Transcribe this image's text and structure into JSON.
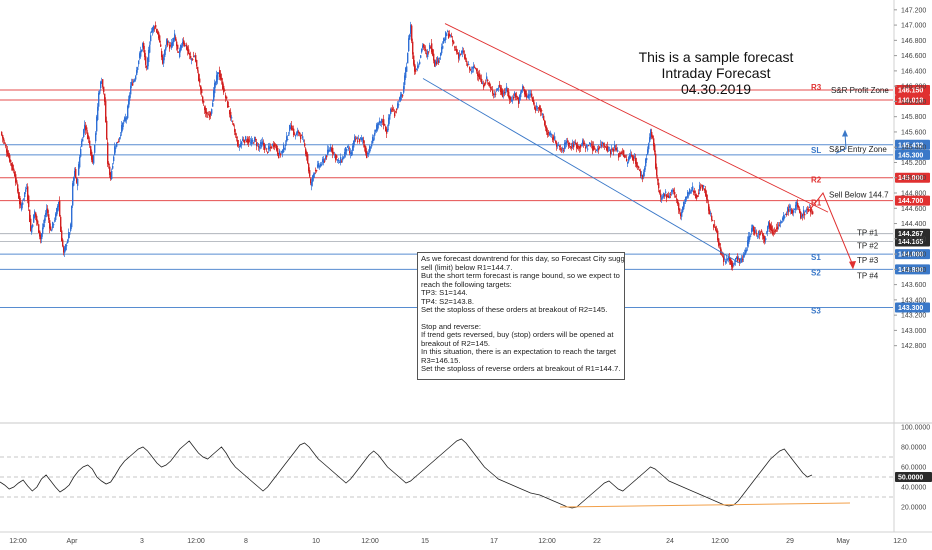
{
  "title": {
    "line1": "This is a sample forecast",
    "line2": "Intraday Forecast",
    "line3": "04.30.2019"
  },
  "colors": {
    "bull": "#2f6fd6",
    "bear": "#d21f1f",
    "resistance": "#e03030",
    "support": "#3a78c8",
    "osc": "#222222",
    "osc_trend": "#f2a04a",
    "tp": "#9aa0a8"
  },
  "chart_data": [
    {
      "type": "candlestick",
      "price_scale": {
        "min": 141.8,
        "max": 147.25
      },
      "price_ticks": [
        "147.200",
        "147.000",
        "146.800",
        "146.600",
        "146.400",
        "146.200",
        "146.000",
        "145.800",
        "145.600",
        "145.400",
        "145.200",
        "145.000",
        "144.800",
        "144.600",
        "144.400",
        "144.200",
        "144.000",
        "143.800",
        "143.600",
        "143.400",
        "143.200",
        "143.000",
        "142.800"
      ],
      "x_ticks": [
        "12:00",
        "Apr",
        "3",
        "12:00",
        "8",
        "10",
        "12:00",
        "15",
        "17",
        "12:00",
        "22",
        "24",
        "12:00",
        "29",
        "May",
        "12:0"
      ],
      "anchors": [
        [
          0,
          145.6
        ],
        [
          5,
          145.4
        ],
        [
          10,
          145.2
        ],
        [
          14,
          145.05
        ],
        [
          20,
          144.6
        ],
        [
          26,
          144.9
        ],
        [
          30,
          144.3
        ],
        [
          34,
          144.55
        ],
        [
          40,
          144.2
        ],
        [
          46,
          144.6
        ],
        [
          50,
          144.3
        ],
        [
          55,
          144.5
        ],
        [
          58,
          144.7
        ],
        [
          60,
          144.3
        ],
        [
          63,
          144.0
        ],
        [
          66,
          144.15
        ],
        [
          70,
          144.35
        ],
        [
          72,
          144.9
        ],
        [
          74,
          145.1
        ],
        [
          76,
          144.9
        ],
        [
          80,
          145.4
        ],
        [
          84,
          145.7
        ],
        [
          88,
          145.5
        ],
        [
          92,
          145.2
        ],
        [
          95,
          145.6
        ],
        [
          98,
          146.1
        ],
        [
          101,
          146.3
        ],
        [
          104,
          146.0
        ],
        [
          107,
          145.2
        ],
        [
          110,
          145.0
        ],
        [
          114,
          145.4
        ],
        [
          118,
          145.5
        ],
        [
          122,
          145.7
        ],
        [
          126,
          145.8
        ],
        [
          130,
          146.2
        ],
        [
          134,
          146.3
        ],
        [
          138,
          146.55
        ],
        [
          142,
          146.75
        ],
        [
          146,
          146.4
        ],
        [
          150,
          146.9
        ],
        [
          154,
          147.0
        ],
        [
          158,
          146.85
        ],
        [
          162,
          146.5
        ],
        [
          166,
          146.8
        ],
        [
          170,
          146.7
        ],
        [
          174,
          146.85
        ],
        [
          178,
          146.6
        ],
        [
          182,
          146.8
        ],
        [
          186,
          146.7
        ],
        [
          190,
          146.55
        ],
        [
          194,
          146.6
        ],
        [
          198,
          146.3
        ],
        [
          202,
          146.0
        ],
        [
          206,
          145.8
        ],
        [
          210,
          145.85
        ],
        [
          214,
          146.2
        ],
        [
          218,
          146.4
        ],
        [
          222,
          146.2
        ],
        [
          226,
          146.0
        ],
        [
          230,
          145.8
        ],
        [
          234,
          145.6
        ],
        [
          238,
          145.4
        ],
        [
          242,
          145.5
        ],
        [
          246,
          145.5
        ],
        [
          250,
          145.45
        ],
        [
          254,
          145.5
        ],
        [
          258,
          145.4
        ],
        [
          262,
          145.45
        ],
        [
          266,
          145.35
        ],
        [
          270,
          145.4
        ],
        [
          274,
          145.45
        ],
        [
          278,
          145.3
        ],
        [
          282,
          145.35
        ],
        [
          286,
          145.5
        ],
        [
          290,
          145.7
        ],
        [
          294,
          145.55
        ],
        [
          298,
          145.6
        ],
        [
          302,
          145.5
        ],
        [
          306,
          145.3
        ],
        [
          310,
          144.9
        ],
        [
          314,
          145.1
        ],
        [
          318,
          145.15
        ],
        [
          322,
          145.2
        ],
        [
          326,
          145.3
        ],
        [
          330,
          145.4
        ],
        [
          334,
          145.3
        ],
        [
          338,
          145.2
        ],
        [
          342,
          145.25
        ],
        [
          346,
          145.4
        ],
        [
          350,
          145.3
        ],
        [
          354,
          145.5
        ],
        [
          358,
          145.5
        ],
        [
          362,
          145.5
        ],
        [
          366,
          145.3
        ],
        [
          370,
          145.4
        ],
        [
          374,
          145.6
        ],
        [
          378,
          145.7
        ],
        [
          382,
          145.75
        ],
        [
          386,
          145.6
        ],
        [
          390,
          145.9
        ],
        [
          394,
          145.85
        ],
        [
          398,
          146.0
        ],
        [
          402,
          146.1
        ],
        [
          406,
          146.5
        ],
        [
          408,
          146.8
        ],
        [
          410,
          147.0
        ],
        [
          412,
          146.6
        ],
        [
          414,
          146.4
        ],
        [
          418,
          146.5
        ],
        [
          422,
          146.75
        ],
        [
          426,
          146.6
        ],
        [
          430,
          146.75
        ],
        [
          434,
          146.5
        ],
        [
          438,
          146.55
        ],
        [
          442,
          146.75
        ],
        [
          446,
          146.9
        ],
        [
          450,
          146.85
        ],
        [
          454,
          146.7
        ],
        [
          458,
          146.6
        ],
        [
          462,
          146.65
        ],
        [
          466,
          146.5
        ],
        [
          470,
          146.4
        ],
        [
          474,
          146.45
        ],
        [
          478,
          146.35
        ],
        [
          482,
          146.2
        ],
        [
          486,
          146.3
        ],
        [
          490,
          146.15
        ],
        [
          494,
          146.1
        ],
        [
          498,
          146.2
        ],
        [
          502,
          146.1
        ],
        [
          506,
          146.15
        ],
        [
          510,
          146.0
        ],
        [
          514,
          146.1
        ],
        [
          518,
          146.0
        ],
        [
          522,
          146.2
        ],
        [
          526,
          146.05
        ],
        [
          530,
          146.1
        ],
        [
          534,
          145.9
        ],
        [
          538,
          145.95
        ],
        [
          542,
          145.8
        ],
        [
          546,
          145.6
        ],
        [
          550,
          145.55
        ],
        [
          554,
          145.5
        ],
        [
          558,
          145.4
        ],
        [
          562,
          145.35
        ],
        [
          566,
          145.5
        ],
        [
          570,
          145.4
        ],
        [
          574,
          145.45
        ],
        [
          578,
          145.4
        ],
        [
          582,
          145.45
        ],
        [
          586,
          145.4
        ],
        [
          590,
          145.45
        ],
        [
          594,
          145.35
        ],
        [
          598,
          145.4
        ],
        [
          602,
          145.45
        ],
        [
          606,
          145.4
        ],
        [
          610,
          145.35
        ],
        [
          614,
          145.4
        ],
        [
          618,
          145.3
        ],
        [
          622,
          145.35
        ],
        [
          626,
          145.2
        ],
        [
          630,
          145.3
        ],
        [
          634,
          145.25
        ],
        [
          638,
          145.1
        ],
        [
          642,
          145.0
        ],
        [
          646,
          145.3
        ],
        [
          650,
          145.6
        ],
        [
          653,
          145.45
        ],
        [
          656,
          145.0
        ],
        [
          660,
          144.7
        ],
        [
          664,
          144.8
        ],
        [
          668,
          144.75
        ],
        [
          672,
          144.85
        ],
        [
          676,
          144.7
        ],
        [
          680,
          144.5
        ],
        [
          684,
          144.7
        ],
        [
          688,
          144.8
        ],
        [
          692,
          144.85
        ],
        [
          696,
          144.75
        ],
        [
          700,
          144.9
        ],
        [
          704,
          144.85
        ],
        [
          708,
          144.6
        ],
        [
          712,
          144.4
        ],
        [
          716,
          144.3
        ],
        [
          720,
          144.0
        ],
        [
          724,
          143.9
        ],
        [
          728,
          143.95
        ],
        [
          732,
          143.85
        ],
        [
          736,
          143.95
        ],
        [
          740,
          143.9
        ],
        [
          744,
          144.0
        ],
        [
          748,
          144.2
        ],
        [
          752,
          144.35
        ],
        [
          756,
          144.25
        ],
        [
          760,
          144.3
        ],
        [
          764,
          144.2
        ],
        [
          768,
          144.4
        ],
        [
          772,
          144.3
        ],
        [
          776,
          144.35
        ],
        [
          780,
          144.4
        ],
        [
          784,
          144.5
        ],
        [
          788,
          144.6
        ],
        [
          792,
          144.55
        ],
        [
          796,
          144.65
        ],
        [
          800,
          144.5
        ],
        [
          804,
          144.55
        ],
        [
          808,
          144.6
        ],
        [
          812,
          144.55
        ]
      ],
      "trendlines": [
        {
          "name": "falling-resistance",
          "from": [
            "15 12:00",
            147.0
          ],
          "to": [
            "May",
            144.3
          ],
          "color": "#e03030"
        },
        {
          "name": "falling-support",
          "from": [
            "15 00:00",
            146.3
          ],
          "to": [
            "29",
            143.9
          ],
          "color": "#3a78c8"
        }
      ],
      "levels": [
        {
          "id": "r3",
          "label": "R3",
          "note": "S&R Profit Zone",
          "price": 146.15,
          "tag": "146.150",
          "kind": "resistance"
        },
        {
          "id": "profit",
          "label": "",
          "note": "",
          "price": 146.018,
          "tag": "146.018",
          "kind": "resistance"
        },
        {
          "id": "sl-top",
          "label": "",
          "note": "",
          "price": 145.432,
          "tag": "145.432",
          "kind": "support"
        },
        {
          "id": "sl",
          "label": "SL",
          "note": "S&R Entry Zone",
          "price": 145.3,
          "tag": "145.300",
          "kind": "support"
        },
        {
          "id": "r2",
          "label": "R2",
          "note": "",
          "price": 145.0,
          "tag": "145.000",
          "kind": "resistance"
        },
        {
          "id": "r1",
          "label": "R1",
          "note": "Sell Below 144.7",
          "price": 144.7,
          "tag": "144.700",
          "kind": "resistance"
        },
        {
          "id": "tp1",
          "label": "",
          "note": "TP #1",
          "price": 144.267,
          "tag": "144.267",
          "kind": "tp"
        },
        {
          "id": "tp2",
          "label": "",
          "note": "TP #2",
          "price": 144.165,
          "tag": "144.165",
          "kind": "tp"
        },
        {
          "id": "s1",
          "label": "S1",
          "note": "TP #3",
          "price": 144.0,
          "tag": "144.000",
          "kind": "support"
        },
        {
          "id": "s2",
          "label": "S2",
          "note": "TP #4",
          "price": 143.8,
          "tag": "143.800",
          "kind": "support"
        },
        {
          "id": "s3",
          "label": "S3",
          "note": "",
          "price": 143.3,
          "tag": "143.300",
          "kind": "support"
        }
      ]
    },
    {
      "type": "line",
      "name": "oscillator",
      "y_scale": {
        "min": 0,
        "max": 100
      },
      "y_ticks": [
        "100.0000",
        "80.0000",
        "60.0000",
        "40.0000",
        "20.0000"
      ],
      "current_tag": "50.0000",
      "dashed_levels": [
        70,
        50,
        30
      ],
      "values": [
        45,
        42,
        38,
        40,
        44,
        47,
        41,
        36,
        40,
        48,
        52,
        46,
        40,
        35,
        38,
        42,
        50,
        56,
        60,
        62,
        58,
        50,
        46,
        43,
        45,
        52,
        60,
        66,
        70,
        74,
        78,
        80,
        76,
        70,
        64,
        60,
        62,
        66,
        72,
        78,
        82,
        86,
        80,
        74,
        70,
        68,
        72,
        76,
        80,
        74,
        66,
        60,
        56,
        52,
        48,
        44,
        40,
        36,
        40,
        46,
        52,
        58,
        64,
        70,
        76,
        82,
        84,
        80,
        74,
        68,
        64,
        60,
        56,
        52,
        48,
        44,
        48,
        54,
        60,
        66,
        72,
        76,
        72,
        66,
        60,
        56,
        52,
        48,
        44,
        46,
        50,
        54,
        58,
        62,
        66,
        70,
        74,
        78,
        82,
        86,
        88,
        84,
        78,
        72,
        66,
        60,
        56,
        52,
        48,
        46,
        44,
        42,
        40,
        38,
        36,
        34,
        33,
        32,
        30,
        28,
        26,
        24,
        22,
        20,
        19,
        20,
        24,
        28,
        32,
        36,
        40,
        44,
        46,
        42,
        38,
        36,
        40,
        44,
        48,
        52,
        56,
        60,
        58,
        54,
        50,
        46,
        44,
        42,
        40,
        38,
        36,
        34,
        32,
        30,
        28,
        26,
        24,
        22,
        21,
        22,
        26,
        32,
        38,
        44,
        50,
        56,
        62,
        68,
        72,
        76,
        78,
        72,
        66,
        60,
        54,
        50,
        52
      ]
    }
  ],
  "annotation": {
    "lines": [
      "As we forecast downtrend for this day, so Forecast City suggests",
      "sell (limit) below R1=144.7.",
      "But the short term forecast is range bound, so we expect to",
      "reach the following targets:",
      "TP3: S1=144.",
      "TP4: S2=143.8.",
      "Set the stoploss of these orders at breakout of R2=145.",
      "",
      "Stop and reverse:",
      "If trend gets reversed, buy (stop) orders will be opened at",
      "breakout of R2=145.",
      "In this situation, there is an expectation to reach the target",
      "R3=146.15.",
      "Set the stoploss of reverse orders at breakout of R1=144.7."
    ]
  }
}
